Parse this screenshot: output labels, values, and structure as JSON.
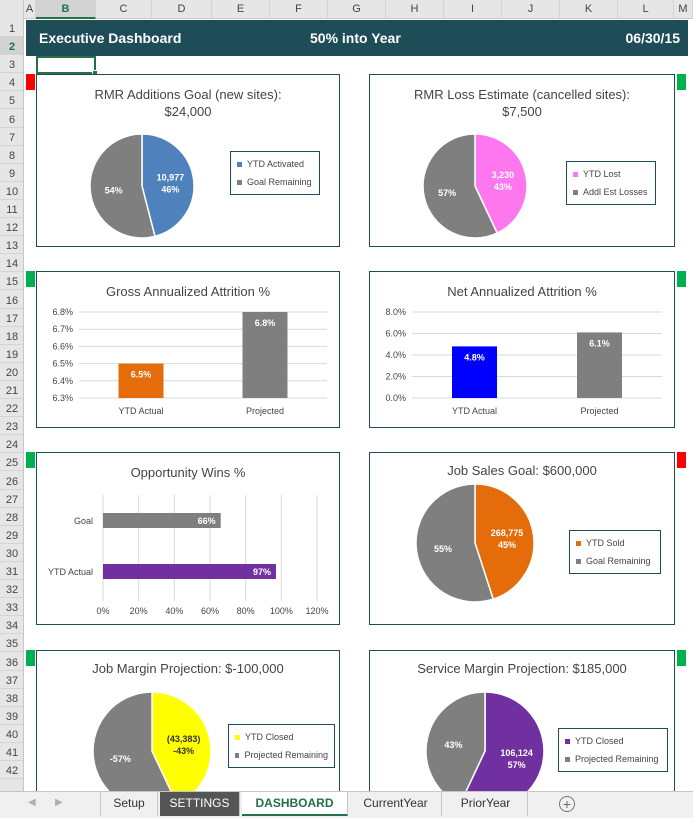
{
  "columns": [
    "A",
    "B",
    "C",
    "D",
    "E",
    "F",
    "G",
    "H",
    "I",
    "J",
    "K",
    "L",
    "M"
  ],
  "rows": [
    "1",
    "2",
    "3",
    "4",
    "5",
    "6",
    "7",
    "8",
    "9",
    "10",
    "11",
    "12",
    "13",
    "14",
    "15",
    "16",
    "17",
    "18",
    "19",
    "20",
    "21",
    "22",
    "23",
    "24",
    "25",
    "26",
    "27",
    "28",
    "29",
    "30",
    "31",
    "32",
    "33",
    "34",
    "35",
    "36",
    "37",
    "38",
    "39",
    "40",
    "41",
    "42"
  ],
  "active_cell": {
    "column": "B",
    "row": "2"
  },
  "header": {
    "title": "Executive Dashboard",
    "progress": "50% into Year",
    "date": "06/30/15",
    "color": "#1e4d57"
  },
  "status_colors": {
    "red": "#ff0000",
    "green": "#00b050"
  },
  "panels": {
    "rmr_add": {
      "title": "RMR Additions Goal (new sites):",
      "subtitle": "$24,000",
      "status": "red",
      "legend": [
        "YTD Activated",
        "Goal Remaining"
      ]
    },
    "rmr_loss": {
      "title": "RMR Loss Estimate (cancelled sites):",
      "subtitle": "$7,500",
      "status": "green",
      "legend": [
        "YTD Lost",
        "Addl Est Losses"
      ]
    },
    "gross_attr": {
      "title": "Gross Annualized Attrition %",
      "status": "green"
    },
    "net_attr": {
      "title": "Net Annualized Attrition %",
      "status": "green"
    },
    "opp_wins": {
      "title": "Opportunity Wins %",
      "status": "green"
    },
    "job_sales": {
      "title": "Job Sales Goal: $600,000",
      "status": "red",
      "legend": [
        "YTD Sold",
        "Goal Remaining"
      ]
    },
    "job_margin": {
      "title": "Job Margin Projection: $-100,000",
      "status": "green",
      "legend": [
        "YTD Closed",
        "Projected Remaining"
      ]
    },
    "svc_margin": {
      "title": "Service Margin Projection: $185,000",
      "status": "green",
      "legend": [
        "YTD Closed",
        "Projected Remaining"
      ]
    }
  },
  "chart_data": [
    {
      "id": "rmr_add",
      "type": "pie",
      "slices": [
        {
          "name": "YTD Activated",
          "label": "10,977",
          "pct_label": "46%",
          "percent": 46,
          "color": "#4f81bd"
        },
        {
          "name": "Goal Remaining",
          "label": "",
          "pct_label": "54%",
          "percent": 54,
          "color": "#7f7f7f"
        }
      ]
    },
    {
      "id": "rmr_loss",
      "type": "pie",
      "slices": [
        {
          "name": "YTD Lost",
          "label": "3,230",
          "pct_label": "43%",
          "percent": 43,
          "color": "#ff77ee"
        },
        {
          "name": "Addl Est Losses",
          "label": "",
          "pct_label": "57%",
          "percent": 57,
          "color": "#7f7f7f"
        }
      ]
    },
    {
      "id": "gross_attr",
      "type": "bar",
      "categories": [
        "YTD Actual",
        "Projected"
      ],
      "values": [
        6.5,
        6.8
      ],
      "value_labels": [
        "6.5%",
        "6.8%"
      ],
      "colors": [
        "#e46c0a",
        "#7f7f7f"
      ],
      "ylim": [
        6.3,
        6.8
      ],
      "yticks": [
        "6.8%",
        "6.7%",
        "6.6%",
        "6.5%",
        "6.4%",
        "6.3%"
      ],
      "grid": true
    },
    {
      "id": "net_attr",
      "type": "bar",
      "categories": [
        "YTD Actual",
        "Projected"
      ],
      "values": [
        4.8,
        6.1
      ],
      "value_labels": [
        "4.8%",
        "6.1%"
      ],
      "colors": [
        "#0000ff",
        "#7f7f7f"
      ],
      "ylim": [
        0,
        8
      ],
      "yticks": [
        "8.0%",
        "6.0%",
        "4.0%",
        "2.0%",
        "0.0%"
      ],
      "grid": true
    },
    {
      "id": "opp_wins",
      "type": "bar",
      "orientation": "horizontal",
      "categories": [
        "Goal",
        "YTD Actual"
      ],
      "values": [
        66,
        97
      ],
      "value_labels": [
        "66%",
        "97%"
      ],
      "colors": [
        "#7f7f7f",
        "#7030a0"
      ],
      "xlim": [
        0,
        120
      ],
      "xticks": [
        "0%",
        "20%",
        "40%",
        "60%",
        "80%",
        "100%",
        "120%"
      ],
      "grid": true
    },
    {
      "id": "job_sales",
      "type": "pie",
      "slices": [
        {
          "name": "YTD Sold",
          "label": "268,775",
          "pct_label": "45%",
          "percent": 45,
          "color": "#e46c0a"
        },
        {
          "name": "Goal Remaining",
          "label": "",
          "pct_label": "55%",
          "percent": 55,
          "color": "#7f7f7f"
        }
      ]
    },
    {
      "id": "job_margin",
      "type": "pie",
      "slices": [
        {
          "name": "YTD Closed",
          "label": "(43,383)",
          "pct_label": "-43%",
          "percent": 43,
          "color": "#ffff00"
        },
        {
          "name": "Projected Remaining",
          "label": "",
          "pct_label": "-57%",
          "percent": 57,
          "color": "#7f7f7f"
        }
      ]
    },
    {
      "id": "svc_margin",
      "type": "pie",
      "slices": [
        {
          "name": "YTD Closed",
          "label": "106,124",
          "pct_label": "57%",
          "percent": 57,
          "color": "#7030a0"
        },
        {
          "name": "Projected Remaining",
          "label": "",
          "pct_label": "43%",
          "percent": 43,
          "color": "#7f7f7f"
        }
      ]
    }
  ],
  "sheet_tabs": [
    {
      "label": "Setup",
      "state": "normal"
    },
    {
      "label": "SETTINGS",
      "state": "dark"
    },
    {
      "label": "DASHBOARD",
      "state": "active"
    },
    {
      "label": "CurrentYear",
      "state": "normal"
    },
    {
      "label": "PriorYear",
      "state": "normal"
    }
  ],
  "tab_nav": {
    "prev": "◀",
    "next": "▶",
    "add": "+"
  }
}
